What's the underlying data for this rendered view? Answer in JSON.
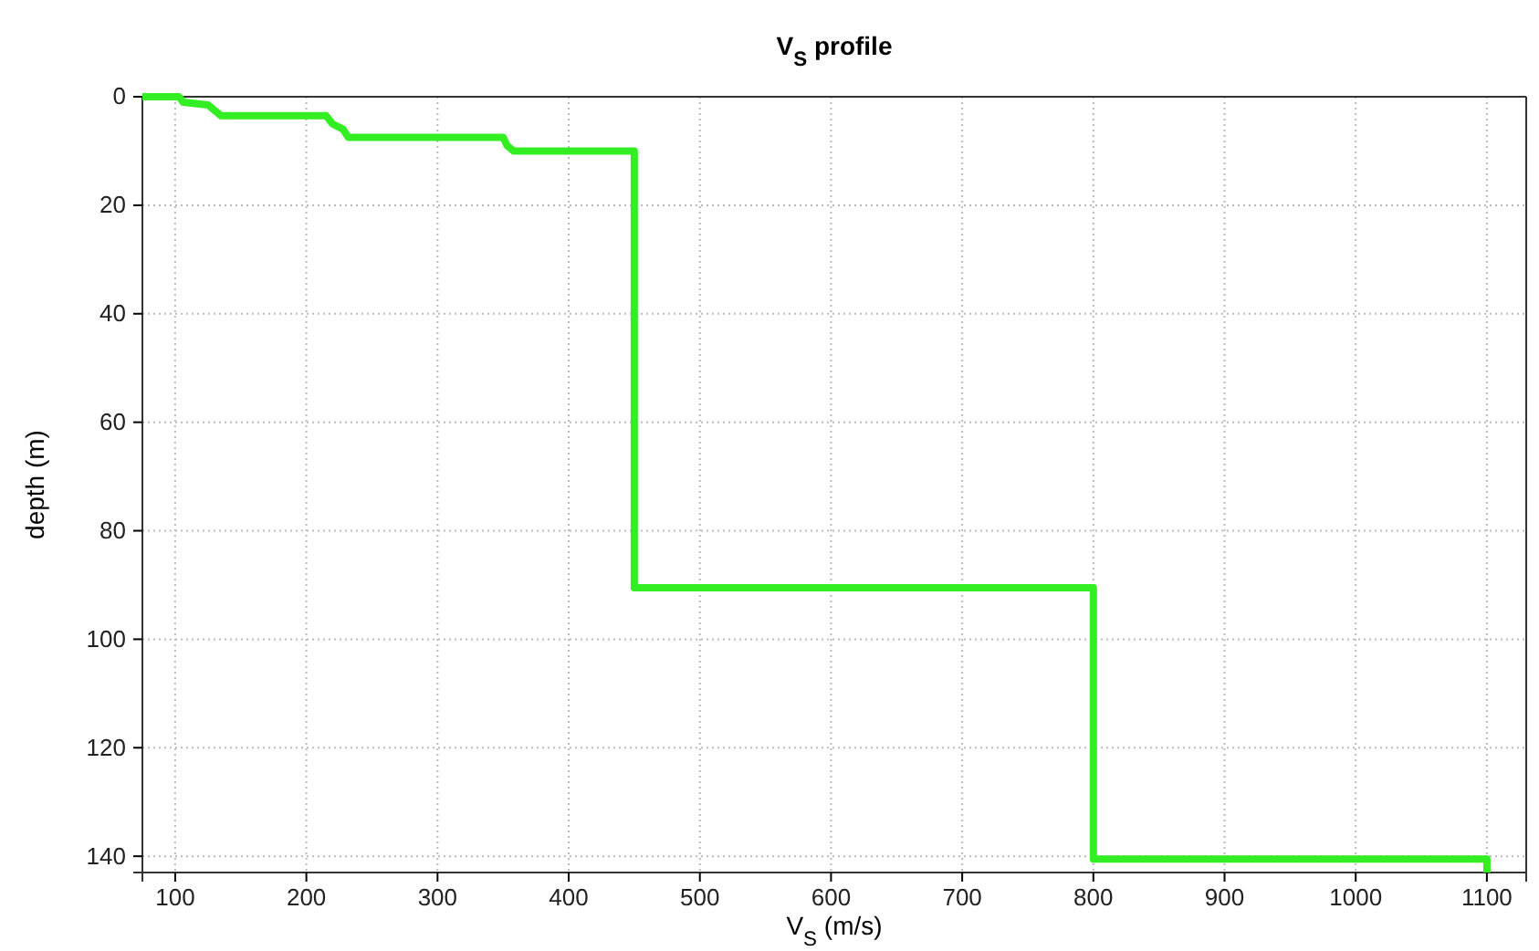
{
  "chart_data": {
    "type": "line",
    "title": "V$_{S}$ profile",
    "xlabel": "V$_{S}$ (m/s)",
    "ylabel": "depth (m)",
    "xlim": [
      75,
      1130
    ],
    "xticks": [
      100,
      200,
      300,
      400,
      500,
      600,
      700,
      800,
      900,
      1000,
      1100
    ],
    "ylim": [
      143,
      0
    ],
    "yticks": [
      0,
      20,
      40,
      60,
      80,
      100,
      120,
      140
    ],
    "grid": true,
    "line_style": "solid",
    "marker": "none",
    "series": [
      {
        "color": "#33ee22",
        "x": [
          75,
          103,
          106,
          125,
          130,
          135,
          215,
          220,
          228,
          232,
          350,
          353,
          358,
          450,
          450,
          800,
          800,
          1100,
          1100
        ],
        "values": [
          0,
          0,
          1,
          1.5,
          2.5,
          3.5,
          3.5,
          5,
          6,
          7.5,
          7.5,
          9,
          10,
          10,
          90.5,
          90.5,
          140.5,
          140.5,
          143
        ]
      }
    ]
  }
}
